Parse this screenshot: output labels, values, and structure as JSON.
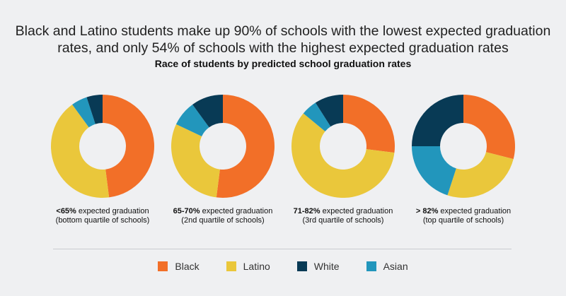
{
  "title_line1": "Black and Latino students make up 90% of schools with the lowest expected graduation",
  "title_line2": "rates, and only 54% of schools with the highest expected graduation rates",
  "chart_data": {
    "type": "pie",
    "subtype": "donut",
    "title": "Race of students by predicted school graduation rates",
    "series_names": [
      "Black",
      "Latino",
      "White",
      "Asian"
    ],
    "colors": {
      "Black": "#f26f28",
      "Latino": "#eac73b",
      "White": "#083a55",
      "Asian": "#2296bc"
    },
    "legend_position": "bottom",
    "charts": [
      {
        "label_bold": "<65%",
        "label_rest": " expected graduation",
        "label_line2": "(bottom quartile of schools)",
        "values": {
          "Black": 48,
          "Latino": 42,
          "Asian": 5,
          "White": 5
        }
      },
      {
        "label_bold": "65-70%",
        "label_rest": " expected graduation",
        "label_line2": "(2nd quartile of schools)",
        "values": {
          "Black": 52,
          "Latino": 30,
          "Asian": 8,
          "White": 10
        }
      },
      {
        "label_bold": "71-82%",
        "label_rest": " expected graduation",
        "label_line2": "(3rd quartile of schools)",
        "values": {
          "Black": 27,
          "Latino": 59,
          "Asian": 5,
          "White": 9
        }
      },
      {
        "label_bold": "> 82%",
        "label_rest": " expected graduation",
        "label_line2": "(top quartile of schools)",
        "values": {
          "Black": 29,
          "Latino": 26,
          "Asian": 20,
          "White": 25
        }
      }
    ]
  },
  "legend": [
    "Black",
    "Latino",
    "White",
    "Asian"
  ]
}
